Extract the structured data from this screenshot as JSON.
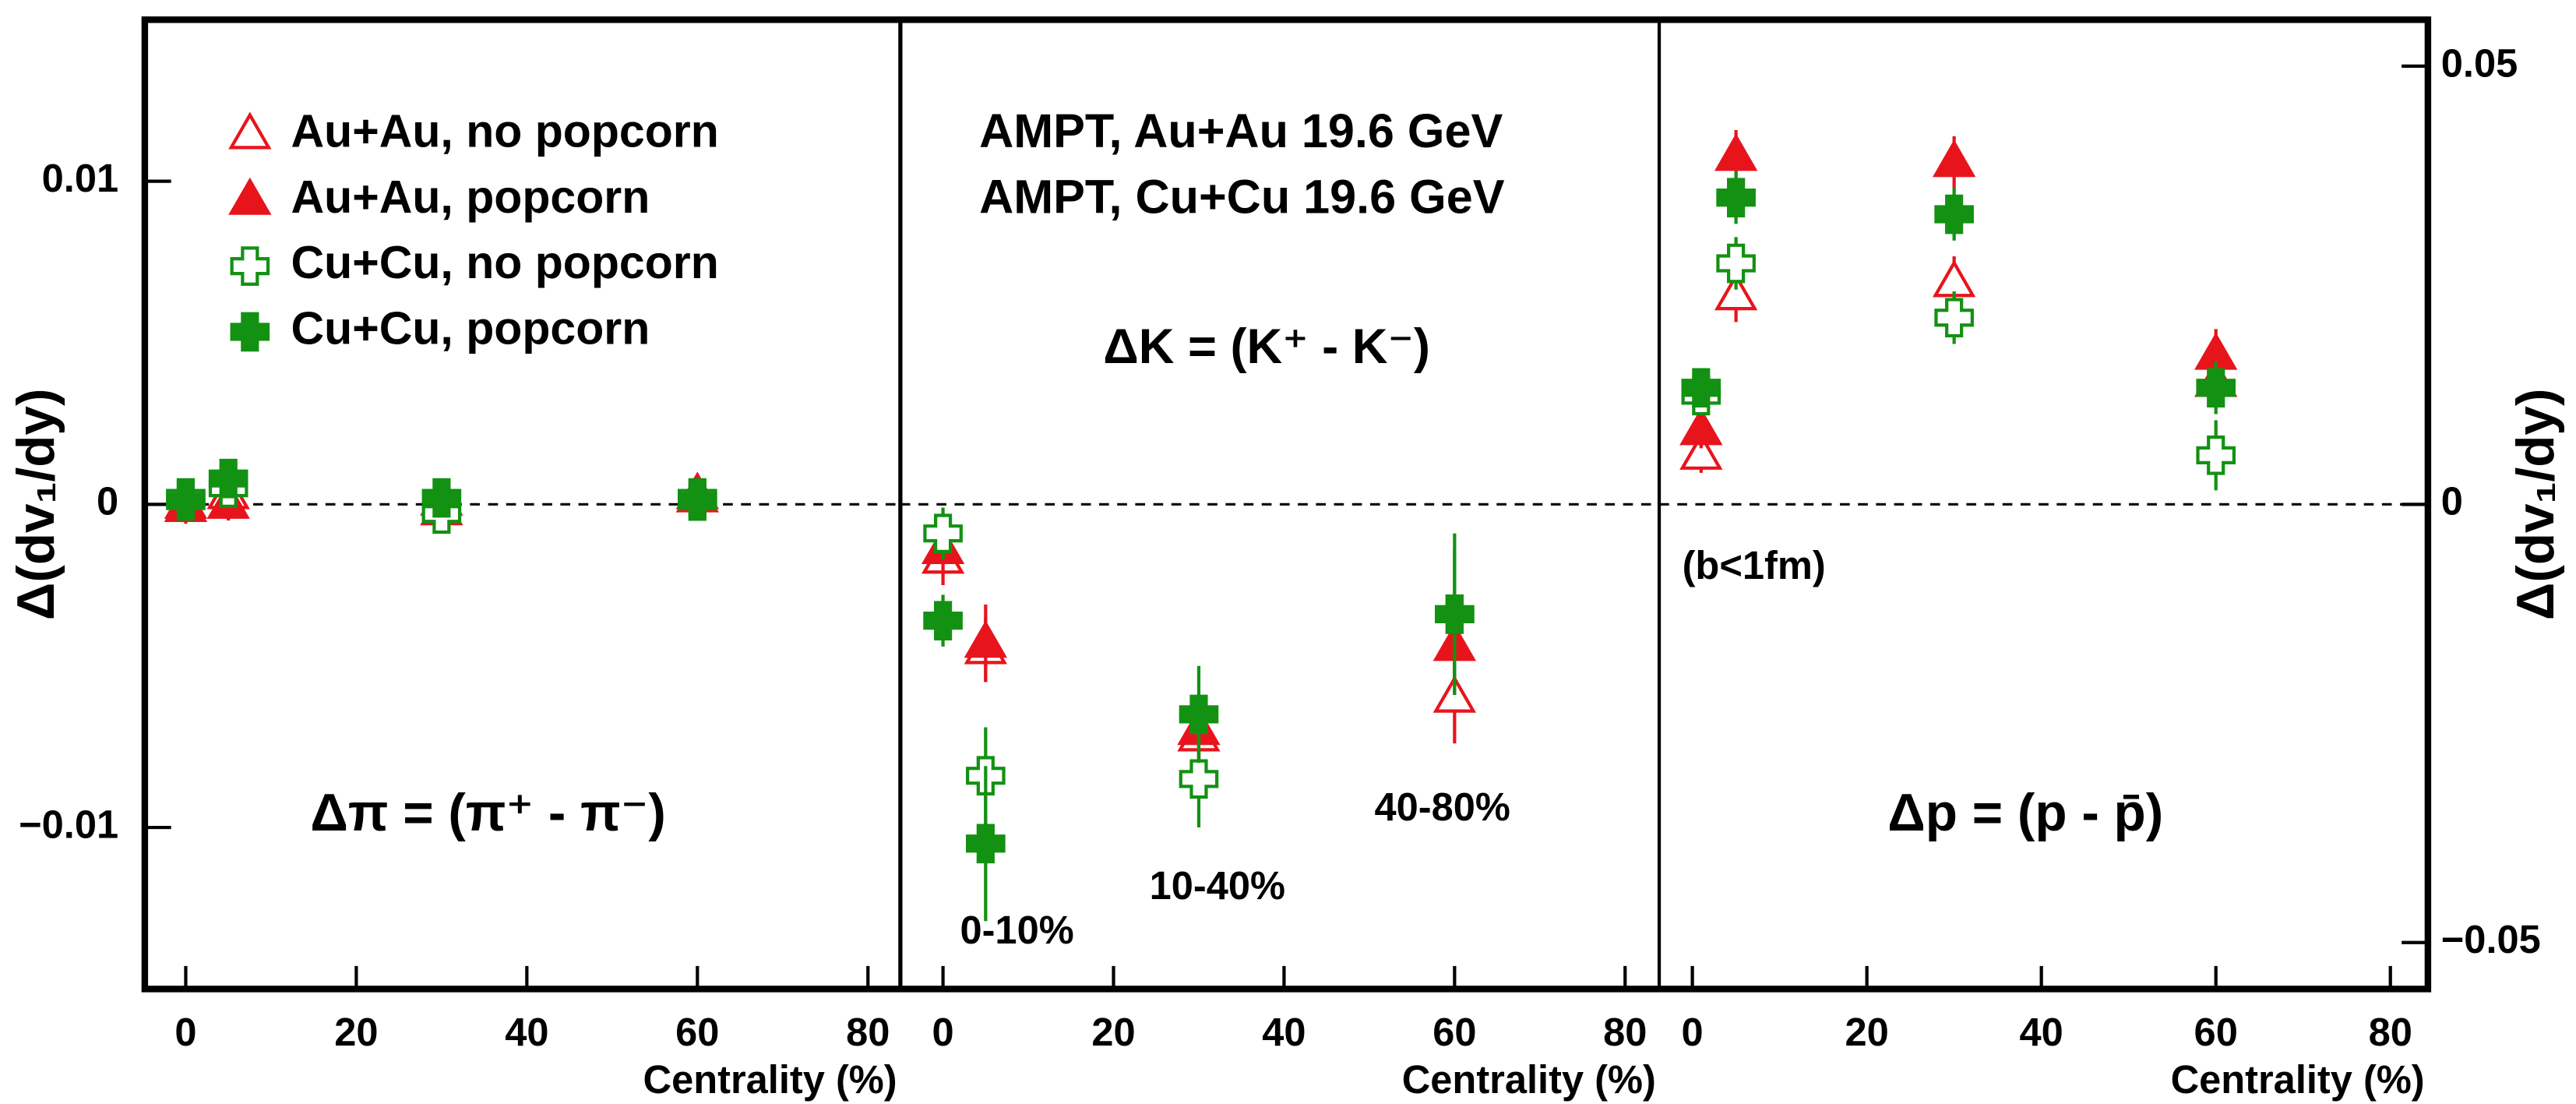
{
  "chart_data": [
    {
      "type": "scatter",
      "xlabel": "Centrality (%)",
      "ylabel": "Δ(dv₁/dy)",
      "xlim": [
        -4.8,
        83.8
      ],
      "xticks": [
        0,
        20,
        40,
        60,
        80
      ],
      "ylim": [
        -0.015,
        0.015
      ],
      "yticks": [
        {
          "value": -0.01,
          "label": "−0.01"
        },
        0,
        0.01
      ],
      "legend": "upper left",
      "x": [
        0,
        5,
        30,
        60
      ],
      "series": [
        {
          "name": "Au+Au, no popcorn",
          "color": "#e8141c",
          "marker": "triangle-open",
          "values": [
            0.0,
            0.0003,
            -0.0002,
            0.0002
          ],
          "errors": [
            0.0005,
            0.0005,
            0.0005,
            0.0005
          ]
        },
        {
          "name": "Au+Au, popcorn",
          "color": "#e8141c",
          "marker": "triangle-filled",
          "values": [
            -0.0001,
            0.0,
            0.0001,
            0.0003
          ],
          "errors": [
            0.0005,
            0.0005,
            0.0005,
            0.0005
          ]
        },
        {
          "name": "Cu+Cu, no popcorn",
          "color": "#139113",
          "marker": "cross-open",
          "values": [
            0.0002,
            0.0005,
            -0.0003,
            0.0002
          ],
          "errors": [
            0.0005,
            0.0005,
            0.0005,
            0.0005
          ]
        },
        {
          "name": "Cu+Cu, popcorn",
          "color": "#139113",
          "marker": "cross-filled",
          "values": [
            0.0001,
            0.0008,
            0.0002,
            0.0001
          ],
          "errors": [
            0.0005,
            0.0005,
            0.0005,
            0.0005
          ]
        }
      ],
      "annotations": [
        {
          "text": "Δπ = (π⁺ -  π⁻)",
          "color": "#000000"
        }
      ]
    },
    {
      "type": "scatter",
      "xlabel": "Centrality (%)",
      "xlim": [
        -5,
        84
      ],
      "xticks": [
        0,
        20,
        40,
        60,
        80
      ],
      "ylim": [
        -0.015,
        0.015
      ],
      "x": [
        0,
        5,
        30,
        60
      ],
      "series": [
        {
          "color": "#e8141c",
          "marker": "triangle-open",
          "values": [
            -0.0017,
            -0.0045,
            -0.0072,
            -0.006
          ],
          "errors": [
            0.0008,
            0.001,
            0.001,
            0.0014
          ]
        },
        {
          "color": "#e8141c",
          "marker": "triangle-filled",
          "values": [
            -0.0014,
            -0.0043,
            -0.007,
            -0.0044
          ],
          "errors": [
            0.0008,
            0.0012,
            0.001,
            0.0015
          ]
        },
        {
          "color": "#139113",
          "marker": "cross-open",
          "values": [
            -0.0009,
            -0.0084,
            -0.0085,
            -0.0034
          ],
          "errors": [
            0.0008,
            0.0015,
            0.0015,
            0.002
          ]
        },
        {
          "color": "#139113",
          "marker": "cross-filled",
          "values": [
            -0.0036,
            -0.0105,
            -0.0065,
            -0.0034
          ],
          "errors": [
            0.0008,
            0.0024,
            0.0015,
            0.0025
          ]
        }
      ],
      "annotations": [
        {
          "text": "AMPT, Au+Au 19.6 GeV",
          "color": "#e8141c"
        },
        {
          "text": "AMPT, Cu+Cu 19.6 GeV",
          "color": "#139113"
        },
        {
          "text": "ΔK = (K⁺ - K⁻)",
          "color": "#000000"
        },
        {
          "text": "0-10%",
          "color": "#000000"
        },
        {
          "text": "10-40%",
          "color": "#000000"
        },
        {
          "text": "40-80%",
          "color": "#000000"
        }
      ]
    },
    {
      "type": "scatter",
      "xlabel": "Centrality (%)",
      "y2label": "Δ(dv₁/dy)",
      "xlim": [
        -3.8,
        84.3
      ],
      "xticks": [
        0,
        20,
        40,
        60,
        80
      ],
      "y2lim": [
        -0.0553,
        0.0553
      ],
      "y2ticks": [
        {
          "value": -0.05,
          "label": "−0.05"
        },
        0,
        0.05
      ],
      "x": [
        1,
        5,
        30,
        60
      ],
      "series": [
        {
          "axis": "y2",
          "color": "#e8141c",
          "marker": "triangle-open",
          "values": [
            0.0056,
            0.0238,
            0.0253,
            0.0139
          ],
          "errors": [
            0.002,
            0.003,
            0.003,
            0.003
          ]
        },
        {
          "axis": "y2",
          "color": "#e8141c",
          "marker": "triangle-filled",
          "values": [
            0.0084,
            0.0397,
            0.039,
            0.017
          ],
          "errors": [
            0.002,
            0.003,
            0.003,
            0.003
          ]
        },
        {
          "axis": "y2",
          "color": "#139113",
          "marker": "cross-open",
          "values": [
            0.0124,
            0.0275,
            0.0213,
            0.0056
          ],
          "errors": [
            0.002,
            0.003,
            0.003,
            0.004
          ]
        },
        {
          "axis": "y2",
          "color": "#139113",
          "marker": "cross-filled",
          "values": [
            0.0133,
            0.035,
            0.0331,
            0.0133
          ],
          "errors": [
            0.002,
            0.003,
            0.003,
            0.003
          ]
        }
      ],
      "annotations": [
        {
          "text": "(b<1fm)",
          "color": "#000000"
        },
        {
          "text": "Δp = (p - p̄)",
          "color": "#000000"
        }
      ]
    }
  ]
}
